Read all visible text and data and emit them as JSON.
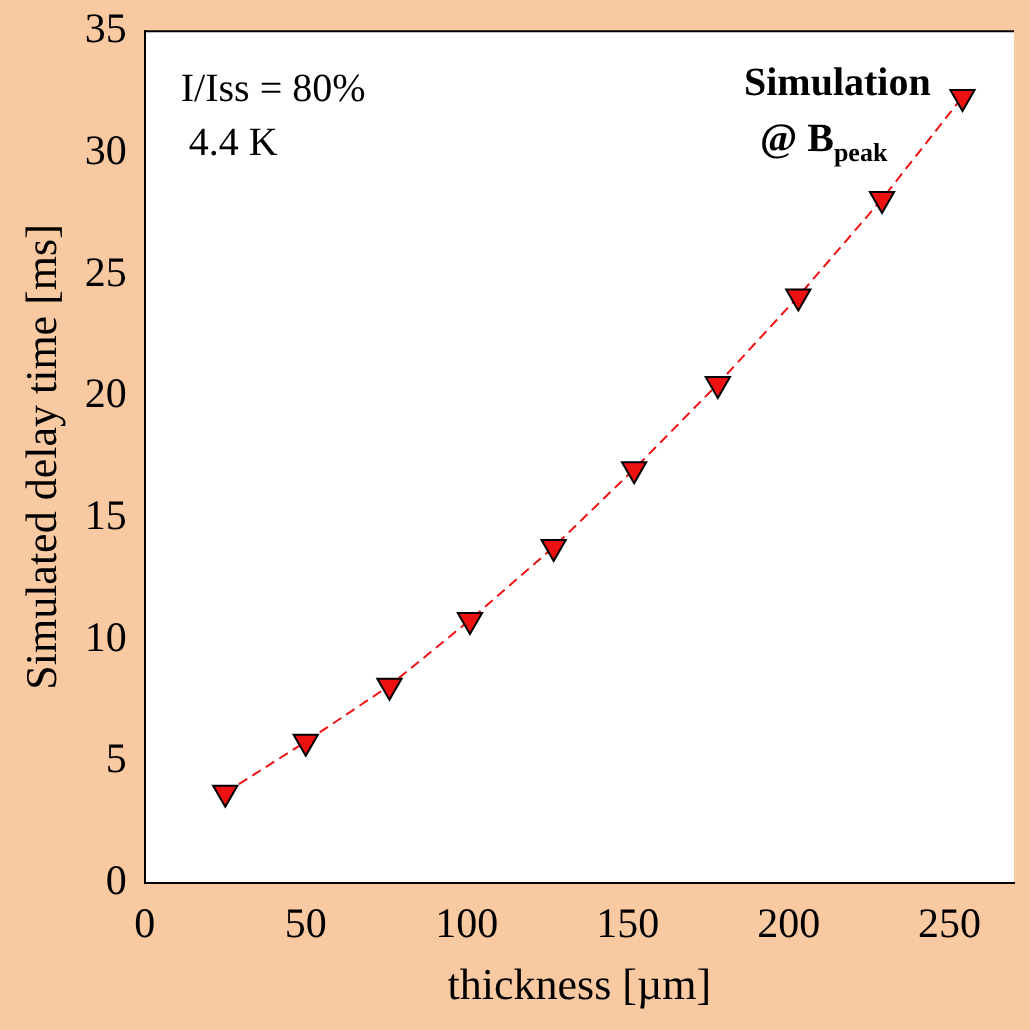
{
  "chart_data": {
    "type": "line",
    "xlabel": "thickness [µm]",
    "ylabel": "Simulated delay time [ms]",
    "annotations": [
      "I/Iss = 80%",
      "4.4 K",
      "Simulation",
      "@ B$_{peak}$"
    ],
    "x": [
      25,
      50,
      76,
      101,
      127,
      152,
      178,
      203,
      229,
      254
    ],
    "series": [
      {
        "color": "#ee1111",
        "values": [
          3.7,
          5.8,
          8.1,
          10.8,
          13.8,
          17.0,
          20.5,
          24.1,
          28.1,
          32.3
        ]
      }
    ],
    "xlim": [
      0,
      270
    ],
    "xticks": [
      0,
      50,
      100,
      150,
      200,
      250
    ],
    "ylim": [
      0,
      35
    ],
    "yticks": [
      0,
      5,
      10,
      15,
      20,
      25,
      30,
      35
    ],
    "marker": "triangle",
    "line_style": "dashed",
    "grid": false,
    "legend": false
  }
}
